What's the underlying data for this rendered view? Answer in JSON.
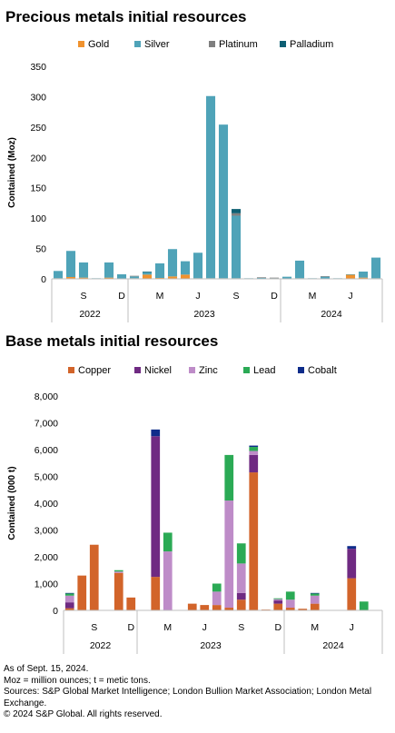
{
  "colors": {
    "gold": "#F0922E",
    "silver": "#4FA3B8",
    "platinum": "#7F7F7F",
    "palladium": "#0E5F73",
    "copper": "#D2642A",
    "nickel": "#6F2A82",
    "zinc": "#BE8CC8",
    "lead": "#2BAA55",
    "cobalt": "#0E2C8A"
  },
  "notes": [
    "As of Sept. 15, 2024.",
    "Moz = million ounces; t = metic tons.",
    "Sources: S&P Global Market Intelligence; London Bullion Market Association; London Metal Exchange.",
    "© 2024 S&P Global. All rights reserved."
  ],
  "chart_data": [
    {
      "type": "bar",
      "stacked": true,
      "title": "Precious metals initial resources",
      "ylabel": "Contained (Moz)",
      "ylim": [
        0,
        350
      ],
      "yticks": [
        0,
        50,
        100,
        150,
        200,
        250,
        300,
        350
      ],
      "legend_position": "top",
      "categories": [
        "Jul 2022",
        "Aug 2022",
        "Sep 2022",
        "Oct 2022",
        "Nov 2022",
        "Dec 2022",
        "Jan 2023",
        "Feb 2023",
        "Mar 2023",
        "Apr 2023",
        "May 2023",
        "Jun 2023",
        "Jul 2023",
        "Aug 2023",
        "Sep 2023",
        "Oct 2023",
        "Nov 2023",
        "Dec 2023",
        "Jan 2024",
        "Feb 2024",
        "Mar 2024",
        "Apr 2024",
        "May 2024",
        "Jun 2024",
        "Jul 2024",
        "Aug 2024"
      ],
      "month_ticks": [
        {
          "index": 2,
          "label": "S"
        },
        {
          "index": 5,
          "label": "D"
        },
        {
          "index": 8,
          "label": "M"
        },
        {
          "index": 11,
          "label": "J"
        },
        {
          "index": 14,
          "label": "S"
        },
        {
          "index": 17,
          "label": "D"
        },
        {
          "index": 20,
          "label": "M"
        },
        {
          "index": 23,
          "label": "J"
        }
      ],
      "years": [
        {
          "label": "2022",
          "start": 0,
          "end": 5
        },
        {
          "label": "2023",
          "start": 6,
          "end": 17
        },
        {
          "label": "2024",
          "start": 18,
          "end": 25
        }
      ],
      "series": [
        {
          "name": "Gold",
          "color_key": "gold",
          "values": [
            1,
            3,
            2,
            0.5,
            2,
            0.5,
            1,
            7,
            1.5,
            4,
            7,
            1,
            1,
            1,
            1,
            0.5,
            0.5,
            0.5,
            0.5,
            1,
            0.5,
            0.5,
            0.5,
            7,
            2,
            1
          ]
        },
        {
          "name": "Silver",
          "color_key": "silver",
          "values": [
            12,
            43,
            25,
            0.5,
            25,
            7,
            3,
            4,
            24,
            45,
            22,
            42,
            300,
            253,
            103,
            0.5,
            1,
            0.5,
            3,
            29,
            0.5,
            3,
            0.5,
            0.5,
            10,
            34
          ]
        },
        {
          "name": "Platinum",
          "color_key": "platinum",
          "values": [
            0,
            0,
            0,
            0,
            0,
            0,
            1,
            0,
            0,
            0,
            0,
            0,
            0,
            0,
            4,
            0,
            1,
            1,
            0,
            0,
            0,
            1,
            0,
            0,
            0,
            0
          ]
        },
        {
          "name": "Palladium",
          "color_key": "palladium",
          "values": [
            0,
            0,
            0,
            0,
            0,
            0,
            0,
            1,
            0,
            0,
            0,
            0,
            0,
            0,
            7,
            0,
            0,
            0,
            0,
            0,
            0,
            0,
            0,
            0,
            0,
            0
          ]
        }
      ]
    },
    {
      "type": "bar",
      "stacked": true,
      "title": "Base metals initial resources",
      "ylabel": "Contained (000 t)",
      "ylim": [
        0,
        8000
      ],
      "yticks": [
        0,
        1000,
        2000,
        3000,
        4000,
        5000,
        6000,
        7000,
        8000
      ],
      "ytick_labels": [
        "0",
        "1,000",
        "2,000",
        "3,000",
        "4,000",
        "5,000",
        "6,000",
        "7,000",
        "8,000"
      ],
      "legend_position": "top",
      "categories": [
        "Jul 2022",
        "Aug 2022",
        "Sep 2022",
        "Oct 2022",
        "Nov 2022",
        "Dec 2022",
        "Jan 2023",
        "Feb 2023",
        "Mar 2023",
        "Apr 2023",
        "May 2023",
        "Jun 2023",
        "Jul 2023",
        "Aug 2023",
        "Sep 2023",
        "Oct 2023",
        "Nov 2023",
        "Dec 2023",
        "Jan 2024",
        "Feb 2024",
        "Mar 2024",
        "Apr 2024",
        "May 2024",
        "Jun 2024",
        "Jul 2024",
        "Aug 2024"
      ],
      "month_ticks": [
        {
          "index": 2,
          "label": "S"
        },
        {
          "index": 5,
          "label": "D"
        },
        {
          "index": 8,
          "label": "M"
        },
        {
          "index": 11,
          "label": "J"
        },
        {
          "index": 14,
          "label": "S"
        },
        {
          "index": 17,
          "label": "D"
        },
        {
          "index": 20,
          "label": "M"
        },
        {
          "index": 23,
          "label": "J"
        }
      ],
      "years": [
        {
          "label": "2022",
          "start": 0,
          "end": 5
        },
        {
          "label": "2023",
          "start": 6,
          "end": 17
        },
        {
          "label": "2024",
          "start": 18,
          "end": 25
        }
      ],
      "series": [
        {
          "name": "Copper",
          "color_key": "copper",
          "values": [
            80,
            1300,
            2450,
            0,
            1400,
            480,
            0,
            1250,
            0,
            0,
            250,
            200,
            200,
            100,
            400,
            5150,
            30,
            250,
            100,
            60,
            250,
            0,
            0,
            1200,
            0,
            0
          ]
        },
        {
          "name": "Nickel",
          "color_key": "nickel",
          "values": [
            220,
            0,
            0,
            0,
            0,
            0,
            0,
            5250,
            0,
            0,
            0,
            0,
            0,
            0,
            250,
            650,
            0,
            120,
            0,
            0,
            0,
            0,
            0,
            1100,
            0,
            0
          ]
        },
        {
          "name": "Zinc",
          "color_key": "zinc",
          "values": [
            250,
            0,
            0,
            0,
            50,
            0,
            0,
            0,
            2200,
            0,
            0,
            0,
            500,
            4000,
            1100,
            150,
            0,
            50,
            300,
            0,
            300,
            0,
            0,
            0,
            0,
            0
          ]
        },
        {
          "name": "Lead",
          "color_key": "lead",
          "values": [
            80,
            0,
            0,
            0,
            50,
            0,
            0,
            0,
            700,
            0,
            0,
            0,
            300,
            1700,
            750,
            150,
            0,
            30,
            300,
            0,
            80,
            0,
            0,
            0,
            330,
            0
          ]
        },
        {
          "name": "Cobalt",
          "color_key": "cobalt",
          "values": [
            20,
            0,
            0,
            0,
            0,
            0,
            0,
            250,
            0,
            0,
            0,
            0,
            0,
            0,
            0,
            50,
            0,
            0,
            0,
            0,
            20,
            0,
            0,
            100,
            0,
            0
          ]
        }
      ]
    }
  ]
}
